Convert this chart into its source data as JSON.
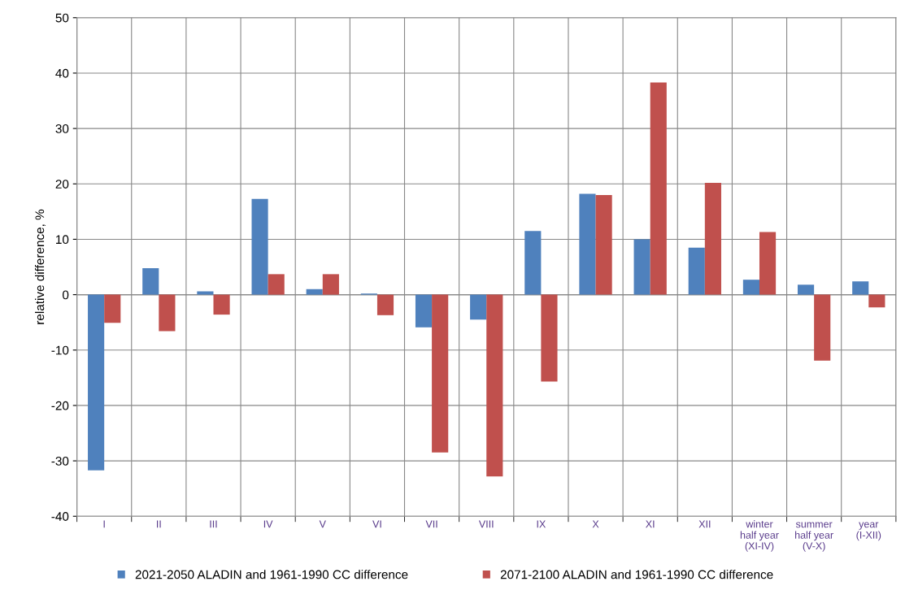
{
  "chart_data": {
    "type": "bar",
    "ylabel": "relative difference, %",
    "categories": [
      "I",
      "II",
      "III",
      "IV",
      "V",
      "VI",
      "VII",
      "VIII",
      "IX",
      "X",
      "XI",
      "XII",
      "winter\nhalf year\n(XI-IV)",
      "summer\nhalf year\n(V-X)",
      "year\n(I-XII)"
    ],
    "series": [
      {
        "name": "2021-2050 ALADIN and 1961-1990 CC difference",
        "color": "#4f81bd",
        "values": [
          -31.7,
          4.8,
          0.6,
          17.3,
          1.0,
          0.2,
          -5.9,
          -4.5,
          11.5,
          18.2,
          10.0,
          8.5,
          2.7,
          1.8,
          2.4
        ]
      },
      {
        "name": "2071-2100 ALADIN and 1961-1990 CC difference",
        "color": "#c0504d",
        "values": [
          -5.1,
          -6.6,
          -3.6,
          3.7,
          3.7,
          -3.7,
          -28.5,
          -32.8,
          -15.7,
          18.0,
          38.3,
          20.2,
          11.3,
          -11.9,
          -2.3
        ]
      }
    ],
    "ylim": [
      -40,
      50
    ],
    "yticks": [
      -40,
      -30,
      -20,
      -10,
      0,
      10,
      20,
      30,
      40,
      50
    ],
    "grid": true,
    "legend": "bottom"
  }
}
